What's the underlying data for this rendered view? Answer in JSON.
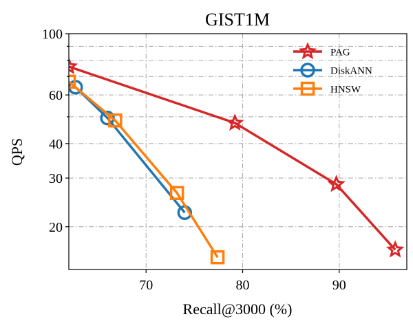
{
  "chart_data": {
    "type": "line",
    "title": "GIST1M",
    "xlabel": "Recall@3000 (%)",
    "ylabel": "QPS",
    "xlim": [
      62,
      97
    ],
    "ylim": [
      14,
      100
    ],
    "yscale": "log",
    "grid": true,
    "legend_position": "top-right",
    "x_ticks": [
      70,
      80,
      90
    ],
    "x_tick_labels": [
      "70",
      "80",
      "90"
    ],
    "y_ticks": [
      20,
      30,
      40,
      60,
      100
    ],
    "y_tick_labels": [
      "20",
      "30",
      "40",
      "60",
      "100"
    ],
    "y_minor_ticks": [
      50,
      70,
      80,
      90
    ],
    "series": [
      {
        "name": "PAG",
        "color": "#d62728",
        "marker": "star",
        "x": [
          62,
          79.2,
          89.7,
          95.8
        ],
        "y": [
          76,
          47.5,
          28.5,
          16.5
        ]
      },
      {
        "name": "DiskANN",
        "color": "#1f77b4",
        "marker": "circle",
        "x": [
          62.7,
          66.0,
          74.0
        ],
        "y": [
          64,
          49.5,
          22.5
        ]
      },
      {
        "name": "HNSW",
        "color": "#ff7f0e",
        "marker": "square",
        "x": [
          62,
          66.8,
          73.2,
          77.4
        ],
        "y": [
          67,
          48.5,
          26.5,
          15.5
        ]
      }
    ]
  }
}
